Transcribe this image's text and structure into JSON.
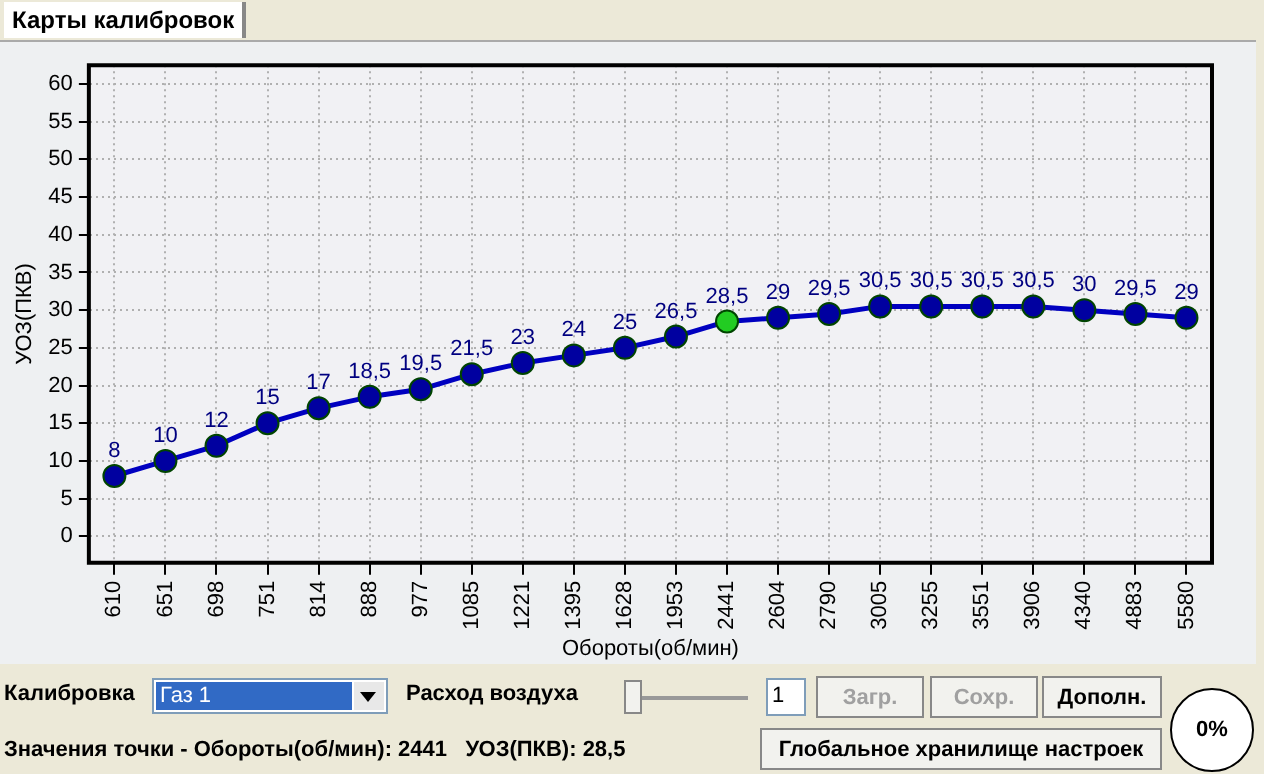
{
  "chart_data": {
    "type": "line",
    "title": "Карты калибровок",
    "xlabel": "Обороты(об/мин)",
    "ylabel": "УОЗ(ПКВ)",
    "categories": [
      "610",
      "651",
      "698",
      "751",
      "814",
      "888",
      "977",
      "1085",
      "1221",
      "1395",
      "1628",
      "1953",
      "2441",
      "2604",
      "2790",
      "3005",
      "3255",
      "3551",
      "3906",
      "4340",
      "4883",
      "5580"
    ],
    "series": [
      {
        "color": "#0000c0",
        "values": [
          8,
          10,
          12,
          15,
          17,
          18.5,
          19.5,
          21.5,
          23,
          24,
          25,
          26.5,
          28.5,
          29,
          29.5,
          30.5,
          30.5,
          30.5,
          30.5,
          30,
          29.5,
          29
        ],
        "colors": [
          "#0000a0",
          "#0000a0",
          "#0000a0",
          "#0000a0",
          "#0000a0",
          "#0000a0",
          "#0000a0",
          "#0000a0",
          "#0000a0",
          "#0000a0",
          "#0000a0",
          "#0000a0",
          "#22cc22",
          "#0000a0",
          "#0000a0",
          "#0000a0",
          "#0000a0",
          "#0000a0",
          "#0000a0",
          "#0000a0",
          "#0000a0",
          "#0000a0"
        ],
        "value_labels": [
          "8",
          "10",
          "12",
          "15",
          "17",
          "18,5",
          "19,5",
          "21,5",
          "23",
          "24",
          "25",
          "26,5",
          "28,5",
          "29",
          "29,5",
          "30,5",
          "30,5",
          "30,5",
          "30,5",
          "30",
          "29,5",
          "29"
        ]
      }
    ],
    "ylim": [
      -3.5,
      62.5
    ],
    "yticks": [
      0,
      5,
      10,
      15,
      20,
      25,
      30,
      35,
      40,
      45,
      50,
      55,
      60
    ],
    "grid": true,
    "legend": false,
    "marker": "circle",
    "line_style": "solid",
    "annotations": [
      "Калибровка",
      "Газ 1",
      "Расход воздуха",
      "1",
      "Загр.",
      "Сохр.",
      "Дополн.",
      "0%",
      "Значения точки - Обороты(об/мин): 2441   УОЗ(ПКВ): 28,5",
      "Глобальное хранилище настроек"
    ]
  }
}
